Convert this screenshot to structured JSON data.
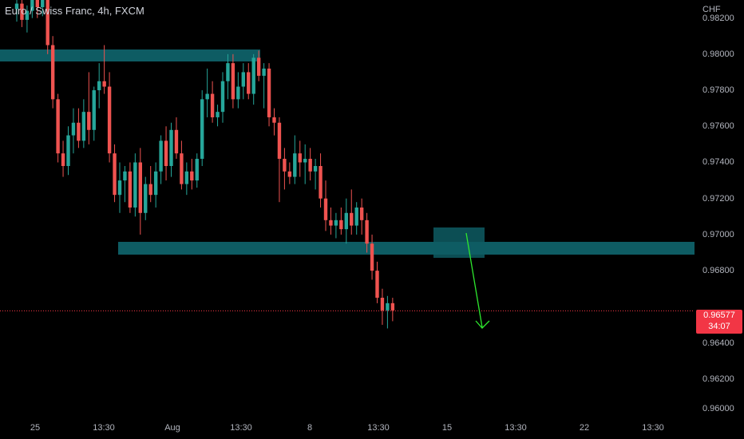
{
  "header": {
    "title": "Euro / Swiss Franc, 4h, FXCM"
  },
  "price_scale": {
    "currency": "CHF",
    "ticks": [
      "0.98200",
      "0.98000",
      "0.97800",
      "0.97600",
      "0.97400",
      "0.97200",
      "0.97000",
      "0.96800",
      "0.96400",
      "0.96200",
      "0.96000"
    ],
    "last_price": "0.96577",
    "countdown": "34:07"
  },
  "time_scale": {
    "ticks": [
      "25",
      "13:30",
      "Aug",
      "13:30",
      "8",
      "13:30",
      "15",
      "13:30",
      "22",
      "13:30"
    ]
  },
  "colors": {
    "up": "#26a69a",
    "down": "#ef5350",
    "zone": "#0e5c63",
    "arrow": "#2ee82e",
    "last_price": "#f23645"
  },
  "chart_data": {
    "type": "candlestick",
    "title": "Euro / Swiss Franc, 4h, FXCM",
    "ylim": [
      0.96,
      0.983
    ],
    "x_tick_labels": [
      "25",
      "13:30",
      "Aug",
      "13:30",
      "8",
      "13:30",
      "15",
      "13:30",
      "22",
      "13:30"
    ],
    "candles": [
      [
        0.9825,
        0.9832,
        0.9818,
        0.9828
      ],
      [
        0.9828,
        0.9833,
        0.9815,
        0.9819
      ],
      [
        0.9819,
        0.9827,
        0.9812,
        0.9824
      ],
      [
        0.9824,
        0.9834,
        0.982,
        0.983
      ],
      [
        0.983,
        0.9838,
        0.982,
        0.9826
      ],
      [
        0.9826,
        0.9835,
        0.9821,
        0.9832
      ],
      [
        0.9832,
        0.9845,
        0.98,
        0.9805
      ],
      [
        0.9805,
        0.981,
        0.977,
        0.9775
      ],
      [
        0.9775,
        0.9778,
        0.974,
        0.9745
      ],
      [
        0.9745,
        0.9752,
        0.9732,
        0.9738
      ],
      [
        0.9738,
        0.976,
        0.9733,
        0.9755
      ],
      [
        0.9755,
        0.977,
        0.9745,
        0.9762
      ],
      [
        0.9762,
        0.977,
        0.9748,
        0.9752
      ],
      [
        0.9752,
        0.9775,
        0.9748,
        0.9768
      ],
      [
        0.9768,
        0.979,
        0.975,
        0.9758
      ],
      [
        0.9758,
        0.9782,
        0.9752,
        0.978
      ],
      [
        0.978,
        0.9795,
        0.977,
        0.9785
      ],
      [
        0.9785,
        0.9805,
        0.9778,
        0.9782
      ],
      [
        0.9782,
        0.979,
        0.974,
        0.9745
      ],
      [
        0.9745,
        0.975,
        0.9718,
        0.9722
      ],
      [
        0.9722,
        0.974,
        0.9712,
        0.973
      ],
      [
        0.973,
        0.9738,
        0.9718,
        0.9735
      ],
      [
        0.9735,
        0.974,
        0.9712,
        0.9715
      ],
      [
        0.9715,
        0.9745,
        0.971,
        0.974
      ],
      [
        0.974,
        0.9748,
        0.97,
        0.9712
      ],
      [
        0.9712,
        0.9732,
        0.9708,
        0.9728
      ],
      [
        0.9728,
        0.9738,
        0.9718,
        0.9722
      ],
      [
        0.9722,
        0.974,
        0.9715,
        0.9735
      ],
      [
        0.9735,
        0.9755,
        0.9728,
        0.9752
      ],
      [
        0.9752,
        0.976,
        0.973,
        0.9738
      ],
      [
        0.9738,
        0.9762,
        0.9732,
        0.9758
      ],
      [
        0.9758,
        0.9765,
        0.9742,
        0.9745
      ],
      [
        0.9745,
        0.9752,
        0.9725,
        0.9728
      ],
      [
        0.9728,
        0.974,
        0.9722,
        0.9735
      ],
      [
        0.9735,
        0.9742,
        0.9725,
        0.973
      ],
      [
        0.973,
        0.9745,
        0.9726,
        0.9742
      ],
      [
        0.9742,
        0.978,
        0.9738,
        0.9775
      ],
      [
        0.9775,
        0.9792,
        0.9765,
        0.9778
      ],
      [
        0.9778,
        0.9785,
        0.9762,
        0.9765
      ],
      [
        0.9765,
        0.9772,
        0.976,
        0.9768
      ],
      [
        0.9768,
        0.979,
        0.9762,
        0.9785
      ],
      [
        0.9785,
        0.98,
        0.9775,
        0.9795
      ],
      [
        0.9795,
        0.98,
        0.977,
        0.9775
      ],
      [
        0.9775,
        0.979,
        0.977,
        0.9782
      ],
      [
        0.9782,
        0.9795,
        0.9775,
        0.979
      ],
      [
        0.979,
        0.9795,
        0.9775,
        0.9778
      ],
      [
        0.9778,
        0.98,
        0.9772,
        0.9798
      ],
      [
        0.9798,
        0.9802,
        0.9785,
        0.9788
      ],
      [
        0.9788,
        0.9795,
        0.977,
        0.9792
      ],
      [
        0.9792,
        0.9795,
        0.976,
        0.9765
      ],
      [
        0.9765,
        0.977,
        0.9755,
        0.9762
      ],
      [
        0.9762,
        0.9765,
        0.9718,
        0.9742
      ],
      [
        0.9742,
        0.9748,
        0.9725,
        0.9735
      ],
      [
        0.9735,
        0.974,
        0.9728,
        0.9732
      ],
      [
        0.9732,
        0.9755,
        0.9728,
        0.9745
      ],
      [
        0.9745,
        0.9752,
        0.9732,
        0.974
      ],
      [
        0.974,
        0.975,
        0.9728,
        0.9742
      ],
      [
        0.9742,
        0.9748,
        0.973,
        0.9735
      ],
      [
        0.9735,
        0.9742,
        0.9725,
        0.9738
      ],
      [
        0.9738,
        0.9745,
        0.9715,
        0.972
      ],
      [
        0.972,
        0.973,
        0.9702,
        0.9708
      ],
      [
        0.9708,
        0.9715,
        0.97,
        0.9705
      ],
      [
        0.9705,
        0.9712,
        0.9698,
        0.9708
      ],
      [
        0.9708,
        0.9715,
        0.97,
        0.9703
      ],
      [
        0.9703,
        0.972,
        0.9695,
        0.9712
      ],
      [
        0.9712,
        0.9725,
        0.97,
        0.9705
      ],
      [
        0.9705,
        0.9718,
        0.97,
        0.9715
      ],
      [
        0.9715,
        0.972,
        0.97,
        0.9708
      ],
      [
        0.9708,
        0.9712,
        0.969,
        0.9695
      ],
      [
        0.9695,
        0.97,
        0.9675,
        0.968
      ],
      [
        0.968,
        0.9685,
        0.9662,
        0.9665
      ],
      [
        0.9665,
        0.967,
        0.965,
        0.9658
      ],
      [
        0.9658,
        0.9666,
        0.9648,
        0.9662
      ],
      [
        0.9662,
        0.9665,
        0.9652,
        0.9658
      ]
    ]
  }
}
